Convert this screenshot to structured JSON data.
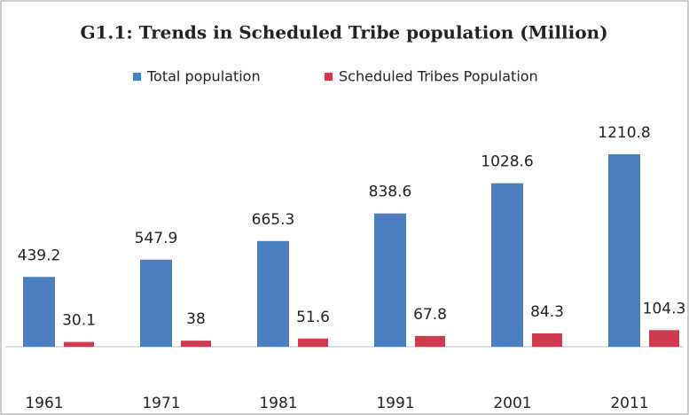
{
  "chart_data": {
    "type": "bar",
    "title": "G1.1: Trends in Scheduled Tribe population (Million)",
    "categories": [
      "1961",
      "1971",
      "1981",
      "1991",
      "2001",
      "2011"
    ],
    "series": [
      {
        "name": "Total population",
        "color": "#4a7ebf",
        "values": [
          439.2,
          547.9,
          665.3,
          838.6,
          1028.6,
          1210.8
        ]
      },
      {
        "name": "Scheduled Tribes Population",
        "color": "#cf3a4e",
        "values": [
          30.1,
          38,
          51.6,
          67.8,
          84.3,
          104.3
        ]
      }
    ],
    "legend": "top"
  }
}
